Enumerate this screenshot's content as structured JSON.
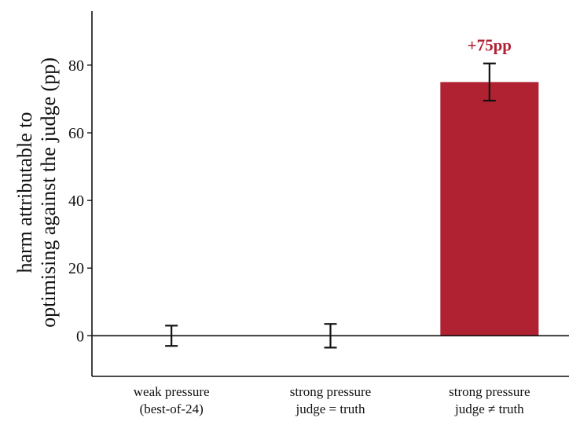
{
  "chart_data": {
    "type": "bar",
    "title": "",
    "xlabel": "",
    "ylabel_lines": [
      "harm attributable to",
      "optimising against the judge (pp)"
    ],
    "ylim": [
      -12,
      96
    ],
    "yticks": [
      0,
      20,
      40,
      60,
      80
    ],
    "categories": [
      [
        "weak pressure",
        "(best-of-24)"
      ],
      [
        "strong pressure",
        "judge = truth"
      ],
      [
        "strong pressure",
        "judge ≠ truth"
      ]
    ],
    "values": [
      0,
      0,
      75
    ],
    "errors": [
      [
        -3,
        3
      ],
      [
        -3.5,
        3.5
      ],
      [
        69.5,
        80.5
      ]
    ],
    "annotations": [
      "",
      "",
      "+75pp"
    ],
    "colors": {
      "bar": "#b02232",
      "annotation": "#b02232",
      "axis": "#111111",
      "error": "#111111"
    },
    "grid": false
  }
}
